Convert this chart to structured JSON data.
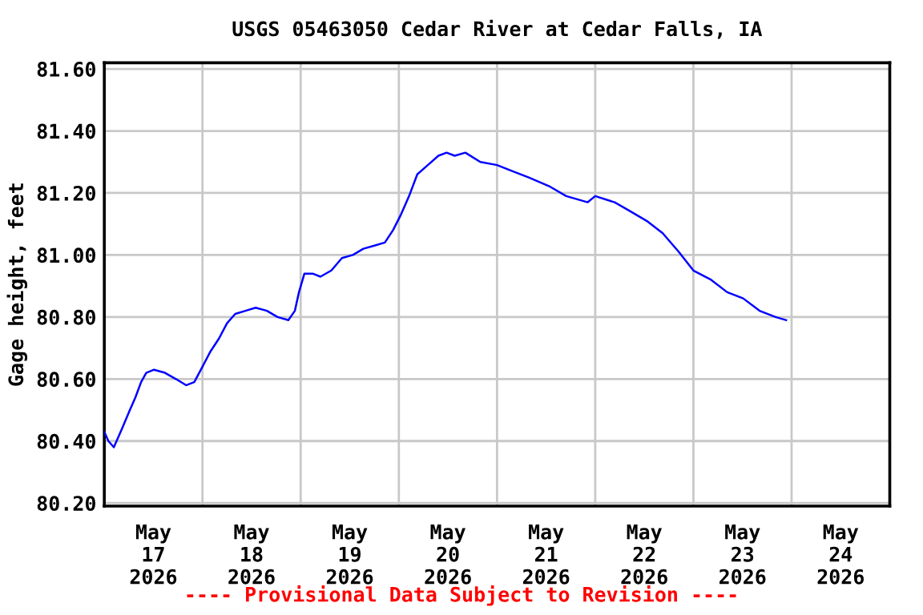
{
  "chart_data": {
    "type": "line",
    "title": "USGS 05463050 Cedar River at Cedar Falls, IA",
    "ylabel": "Gage height, feet",
    "annotations": [
      "---- Provisional Data Subject to Revision ----"
    ],
    "x": [
      "2026-05-17T00:00",
      "2026-05-17T01:00",
      "2026-05-17T02:20",
      "2026-05-17T04:20",
      "2026-05-17T06:15",
      "2026-05-17T07:35",
      "2026-05-17T09:00",
      "2026-05-17T10:15",
      "2026-05-17T12:10",
      "2026-05-17T14:50",
      "2026-05-17T17:30",
      "2026-05-17T20:00",
      "2026-05-17T22:00",
      "2026-05-18T00:00",
      "2026-05-18T02:00",
      "2026-05-18T04:00",
      "2026-05-18T06:00",
      "2026-05-18T08:00",
      "2026-05-18T10:30",
      "2026-05-18T13:00",
      "2026-05-18T15:45",
      "2026-05-18T18:20",
      "2026-05-18T21:00",
      "2026-05-18T22:35",
      "2026-05-18T23:35",
      "2026-05-19T00:55",
      "2026-05-19T02:55",
      "2026-05-19T04:50",
      "2026-05-19T07:30",
      "2026-05-19T10:05",
      "2026-05-19T12:45",
      "2026-05-19T15:20",
      "2026-05-19T18:00",
      "2026-05-19T20:35",
      "2026-05-19T22:35",
      "2026-05-20T00:30",
      "2026-05-20T02:30",
      "2026-05-20T04:30",
      "2026-05-20T07:05",
      "2026-05-20T09:40",
      "2026-05-20T11:40",
      "2026-05-20T13:40",
      "2026-05-20T16:15",
      "2026-05-20T19:55",
      "2026-05-21T00:00",
      "2026-05-21T03:50",
      "2026-05-21T07:45",
      "2026-05-21T13:00",
      "2026-05-21T16:55",
      "2026-05-21T22:10",
      "2026-05-22T00:00",
      "2026-05-22T04:45",
      "2026-05-22T08:40",
      "2026-05-22T12:35",
      "2026-05-22T16:30",
      "2026-05-22T20:25",
      "2026-05-23T00:00",
      "2026-05-23T04:20",
      "2026-05-23T08:15",
      "2026-05-23T12:10",
      "2026-05-23T16:10",
      "2026-05-23T20:05",
      "2026-05-23T22:40"
    ],
    "series": [
      {
        "color": "#0000ff",
        "values": [
          80.43,
          80.4,
          80.38,
          80.44,
          80.5,
          80.54,
          80.59,
          80.62,
          80.63,
          80.62,
          80.6,
          80.58,
          80.59,
          80.64,
          80.69,
          80.73,
          80.78,
          80.81,
          80.82,
          80.83,
          80.82,
          80.8,
          80.79,
          80.82,
          80.88,
          80.94,
          80.94,
          80.93,
          80.95,
          80.99,
          81.0,
          81.02,
          81.03,
          81.04,
          81.08,
          81.13,
          81.19,
          81.26,
          81.29,
          81.32,
          81.33,
          81.32,
          81.33,
          81.3,
          81.29,
          81.27,
          81.25,
          81.22,
          81.19,
          81.17,
          81.19,
          81.17,
          81.14,
          81.11,
          81.07,
          81.01,
          80.95,
          80.92,
          80.88,
          80.86,
          80.82,
          80.8,
          80.79
        ]
      }
    ],
    "xlim": [
      "2026-05-17",
      "2026-05-25"
    ],
    "xticks": [
      {
        "value": "2026-05-17T12:00",
        "label": "May\n17\n2026"
      },
      {
        "value": "2026-05-18T00:00",
        "label": null
      },
      {
        "value": "2026-05-18T12:00",
        "label": "May\n18\n2026"
      },
      {
        "value": "2026-05-19T00:00",
        "label": null
      },
      {
        "value": "2026-05-19T12:00",
        "label": "May\n19\n2026"
      },
      {
        "value": "2026-05-20T00:00",
        "label": null
      },
      {
        "value": "2026-05-20T12:00",
        "label": "May\n20\n2026"
      },
      {
        "value": "2026-05-21T00:00",
        "label": null
      },
      {
        "value": "2026-05-21T12:00",
        "label": "May\n21\n2026"
      },
      {
        "value": "2026-05-22T00:00",
        "label": null
      },
      {
        "value": "2026-05-22T12:00",
        "label": "May\n22\n2026"
      },
      {
        "value": "2026-05-23T00:00",
        "label": null
      },
      {
        "value": "2026-05-23T12:00",
        "label": "May\n23\n2026"
      },
      {
        "value": "2026-05-24T00:00",
        "label": null
      },
      {
        "value": "2026-05-24T12:00",
        "label": "May\n24\n2026"
      }
    ],
    "ylim": [
      80.19,
      81.62
    ],
    "yticks": [
      {
        "value": 80.2,
        "label": "80.20"
      },
      {
        "value": 80.4,
        "label": "80.40"
      },
      {
        "value": 80.6,
        "label": "80.60"
      },
      {
        "value": 80.8,
        "label": "80.80"
      },
      {
        "value": 81.0,
        "label": "81.00"
      },
      {
        "value": 81.2,
        "label": "81.20"
      },
      {
        "value": 81.4,
        "label": "81.40"
      },
      {
        "value": 81.6,
        "label": "81.60"
      }
    ],
    "grid": true,
    "marker": "none",
    "line_style": "solid"
  }
}
